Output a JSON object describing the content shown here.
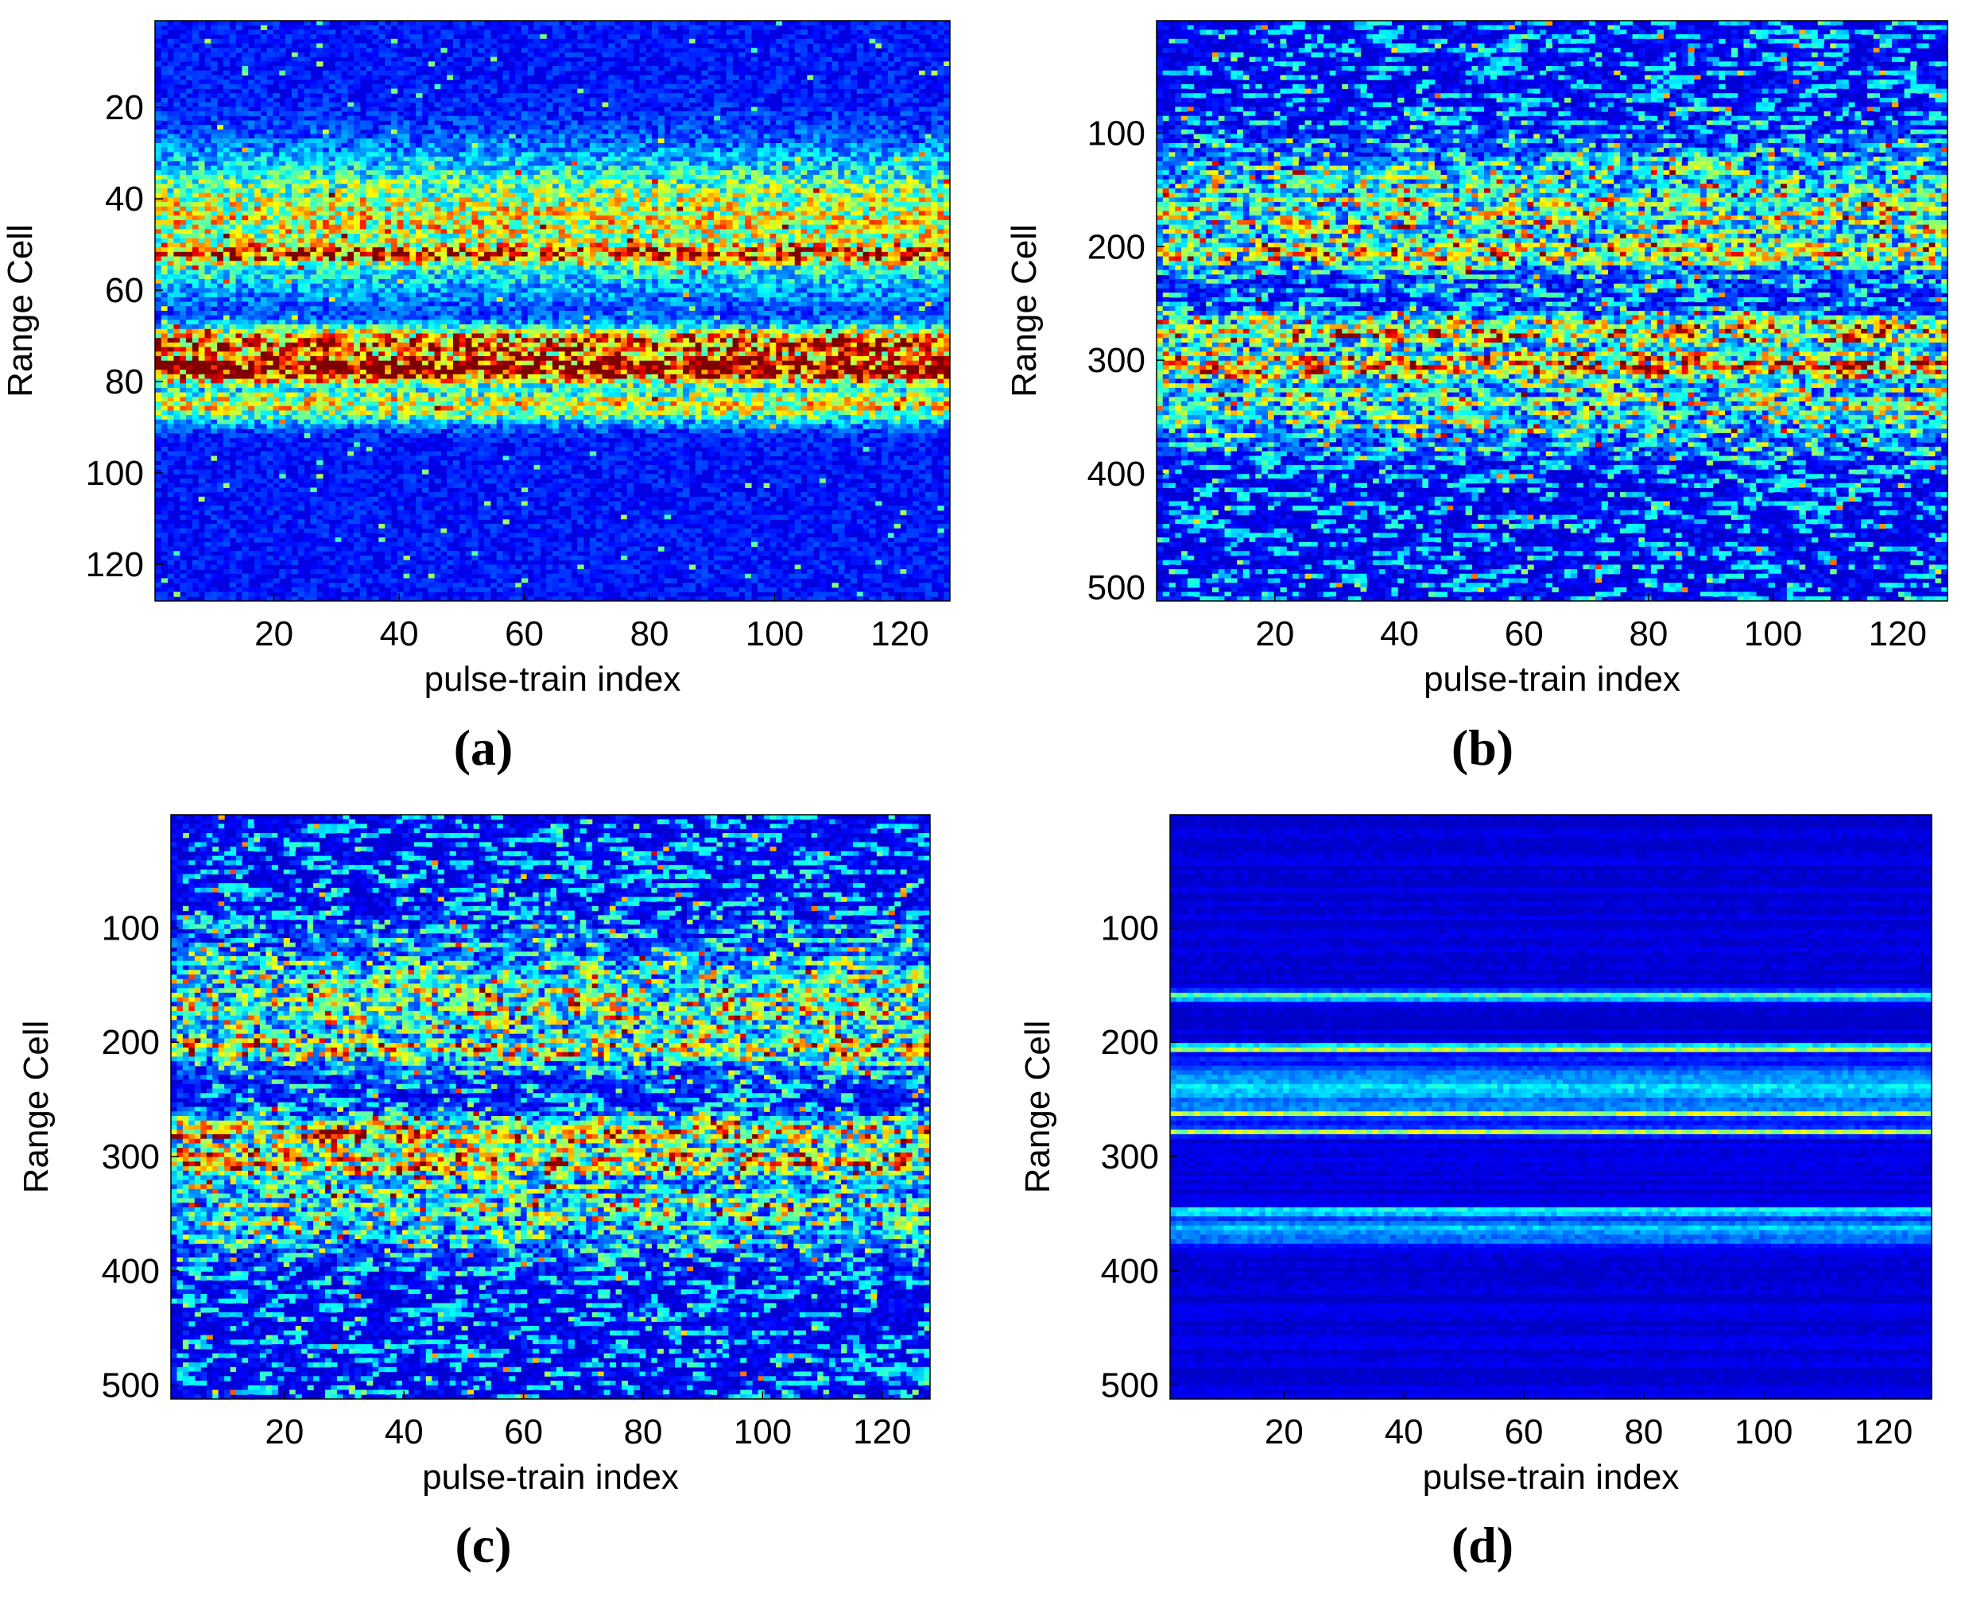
{
  "chart_data": [
    {
      "panel": "(a)",
      "type": "heatmap",
      "colormap": "jet",
      "xlabel": "pulse-train index",
      "ylabel": "Range Cell",
      "xlim": [
        1,
        128
      ],
      "ylim": [
        1,
        128
      ],
      "y_reversed": true,
      "xticks": [
        20,
        40,
        60,
        80,
        100,
        120
      ],
      "yticks": [
        20,
        40,
        60,
        80,
        100,
        120
      ],
      "grid": false,
      "bands": [
        {
          "center": 45,
          "halfwidth": 14,
          "intensity": 0.45
        },
        {
          "center": 52,
          "halfwidth": 3,
          "intensity": 0.7
        },
        {
          "center": 72,
          "halfwidth": 4,
          "intensity": 0.7
        },
        {
          "center": 77,
          "halfwidth": 4,
          "intensity": 0.85
        },
        {
          "center": 85,
          "halfwidth": 4,
          "intensity": 0.45
        }
      ],
      "background": 0.14,
      "texture": "blob",
      "seed": 11
    },
    {
      "panel": "(b)",
      "type": "heatmap",
      "colormap": "jet",
      "xlabel": "pulse-train index",
      "ylabel": "Range Cell",
      "xlim": [
        1,
        128
      ],
      "ylim": [
        1,
        512
      ],
      "y_reversed": true,
      "xticks": [
        20,
        40,
        60,
        80,
        100,
        120
      ],
      "yticks": [
        100,
        200,
        300,
        400,
        500
      ],
      "grid": false,
      "bands": [
        {
          "center": 170,
          "halfwidth": 50,
          "intensity": 0.3
        },
        {
          "center": 205,
          "halfwidth": 12,
          "intensity": 0.45
        },
        {
          "center": 275,
          "halfwidth": 15,
          "intensity": 0.45
        },
        {
          "center": 305,
          "halfwidth": 15,
          "intensity": 0.5
        },
        {
          "center": 340,
          "halfwidth": 35,
          "intensity": 0.25
        }
      ],
      "background": 0.12,
      "texture": "streak",
      "seed": 23
    },
    {
      "panel": "(c)",
      "type": "heatmap",
      "colormap": "jet",
      "xlabel": "pulse-train index",
      "ylabel": "Range Cell",
      "xlim": [
        1,
        128
      ],
      "ylim": [
        1,
        512
      ],
      "y_reversed": true,
      "xticks": [
        20,
        40,
        60,
        80,
        100,
        120
      ],
      "yticks": [
        100,
        200,
        300,
        400,
        500
      ],
      "grid": false,
      "bands": [
        {
          "center": 170,
          "halfwidth": 50,
          "intensity": 0.3
        },
        {
          "center": 205,
          "halfwidth": 12,
          "intensity": 0.45
        },
        {
          "center": 280,
          "halfwidth": 15,
          "intensity": 0.45
        },
        {
          "center": 305,
          "halfwidth": 15,
          "intensity": 0.5
        },
        {
          "center": 345,
          "halfwidth": 35,
          "intensity": 0.25
        }
      ],
      "background": 0.12,
      "texture": "streak",
      "seed": 37
    },
    {
      "panel": "(d)",
      "type": "heatmap",
      "colormap": "jet",
      "xlabel": "pulse-train index",
      "ylabel": "Range Cell",
      "xlim": [
        1,
        128
      ],
      "ylim": [
        1,
        512
      ],
      "y_reversed": true,
      "xticks": [
        20,
        40,
        60,
        80,
        100,
        120
      ],
      "yticks": [
        100,
        200,
        300,
        400,
        500
      ],
      "grid": false,
      "bands": [
        {
          "center": 160,
          "halfwidth": 4,
          "intensity": 0.45
        },
        {
          "center": 205,
          "halfwidth": 3,
          "intensity": 0.55
        },
        {
          "center": 240,
          "halfwidth": 20,
          "intensity": 0.25
        },
        {
          "center": 262,
          "halfwidth": 3,
          "intensity": 0.6
        },
        {
          "center": 278,
          "halfwidth": 3,
          "intensity": 0.45
        },
        {
          "center": 348,
          "halfwidth": 3,
          "intensity": 0.4
        },
        {
          "center": 365,
          "halfwidth": 12,
          "intensity": 0.22
        }
      ],
      "background": 0.1,
      "texture": "rows",
      "seed": 53
    }
  ]
}
